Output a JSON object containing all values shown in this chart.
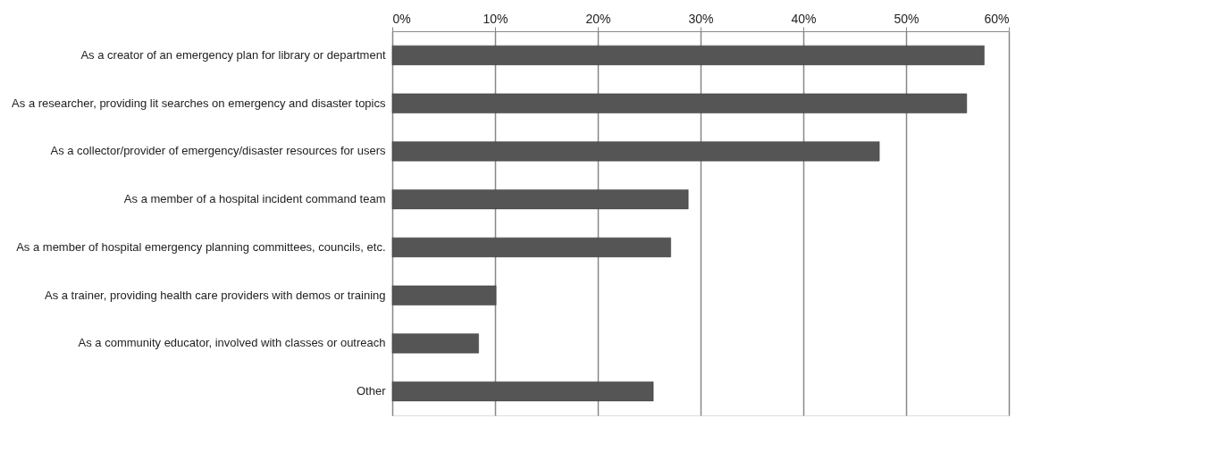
{
  "chart_data": {
    "type": "bar",
    "orientation": "horizontal",
    "categories": [
      "As a creator of an emergency plan for library or department",
      "As a researcher, providing lit searches on emergency and disaster topics",
      "As a collector/provider of emergency/disaster resources for users",
      "As a member of a hospital incident command team",
      "As a member of hospital emergency planning committees, councils, etc.",
      "As a trainer, providing health care providers with demos or training",
      "As a community educator, involved with classes or outreach",
      "Other"
    ],
    "values": [
      57.6,
      55.9,
      47.4,
      28.8,
      27.1,
      10.1,
      8.4,
      25.4
    ],
    "color": "#555555",
    "xlim": [
      0,
      60
    ],
    "xticks": [
      {
        "value": 0,
        "label": "0%"
      },
      {
        "value": 10,
        "label": "10%"
      },
      {
        "value": 20,
        "label": "20%"
      },
      {
        "value": 30,
        "label": "30%"
      },
      {
        "value": 40,
        "label": "40%"
      },
      {
        "value": 50,
        "label": "50%"
      },
      {
        "value": 60,
        "label": "60%"
      }
    ],
    "grid": "x"
  }
}
